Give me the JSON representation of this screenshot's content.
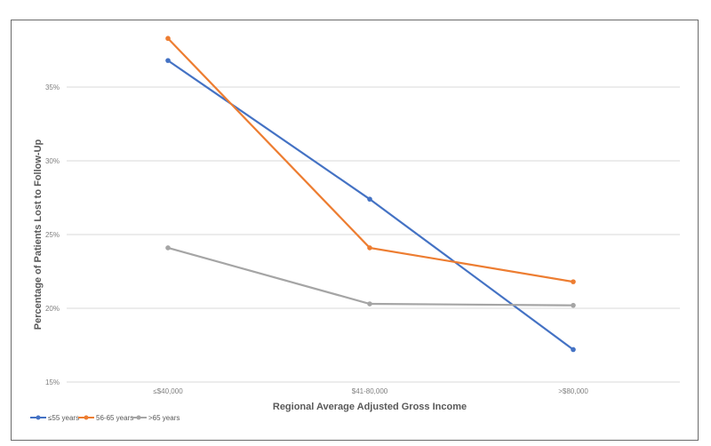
{
  "chart_data": {
    "type": "line",
    "title": "",
    "xlabel": "Regional Average Adjusted Gross Income",
    "ylabel": "Percentage of Patients Lost to Follow-Up",
    "categories": [
      "≤$40,000",
      "$41-80,000",
      ">$80,000"
    ],
    "ylim": [
      15,
      38
    ],
    "yticks": [
      15,
      20,
      25,
      30,
      35
    ],
    "ytick_labels": [
      "15%",
      "20%",
      "25%",
      "30%",
      "35%"
    ],
    "grid": true,
    "legend_position": "bottom-left",
    "series": [
      {
        "name": "≤55 years",
        "color": "#4472c4",
        "values": [
          36.8,
          27.4,
          17.2
        ]
      },
      {
        "name": "56-65 years",
        "color": "#ed7d31",
        "values": [
          38.3,
          24.1,
          21.8
        ]
      },
      {
        "name": ">65 years",
        "color": "#a5a5a5",
        "values": [
          24.1,
          20.3,
          20.2
        ]
      }
    ]
  }
}
